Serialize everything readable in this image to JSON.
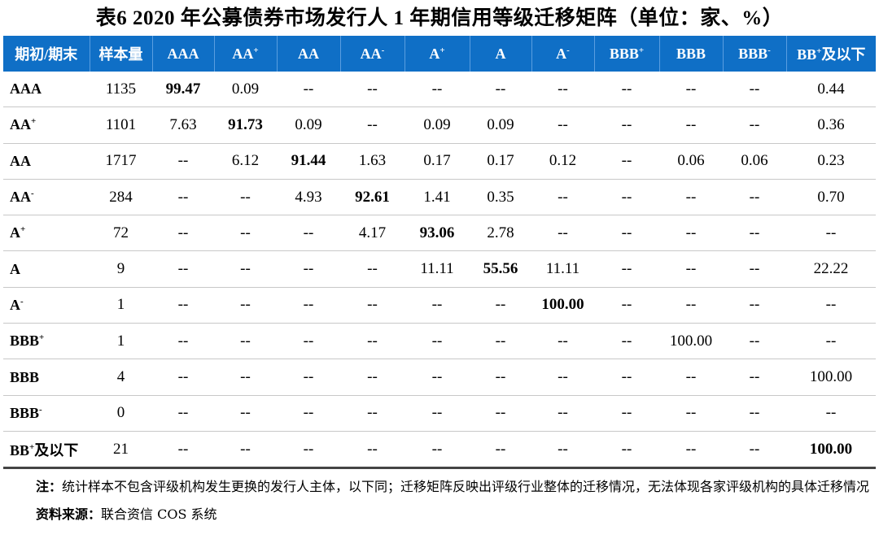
{
  "title": "表6 2020 年公募债券市场发行人 1 年期信用等级迁移矩阵（单位：家、%）",
  "header": [
    {
      "t": "期初/期末",
      "s": ""
    },
    {
      "t": "样本量",
      "s": ""
    },
    {
      "t": "AAA",
      "s": ""
    },
    {
      "t": "AA",
      "s": "+"
    },
    {
      "t": "AA",
      "s": ""
    },
    {
      "t": "AA",
      "s": "-"
    },
    {
      "t": "A",
      "s": "+"
    },
    {
      "t": "A",
      "s": ""
    },
    {
      "t": "A",
      "s": "-"
    },
    {
      "t": "BBB",
      "s": "+"
    },
    {
      "t": "BBB",
      "s": ""
    },
    {
      "t": "BBB",
      "s": "-"
    },
    {
      "t": "BB",
      "s": "+",
      "tail": "及以下"
    }
  ],
  "rows": [
    {
      "rating": "AAA",
      "sup": "",
      "n": "1135",
      "v": [
        "99.47",
        "0.09",
        "--",
        "--",
        "--",
        "--",
        "--",
        "--",
        "--",
        "--",
        "0.44"
      ],
      "bold": 0
    },
    {
      "rating": "AA",
      "sup": "+",
      "n": "1101",
      "v": [
        "7.63",
        "91.73",
        "0.09",
        "--",
        "0.09",
        "0.09",
        "--",
        "--",
        "--",
        "--",
        "0.36"
      ],
      "bold": 1
    },
    {
      "rating": "AA",
      "sup": "",
      "n": "1717",
      "v": [
        "--",
        "6.12",
        "91.44",
        "1.63",
        "0.17",
        "0.17",
        "0.12",
        "--",
        "0.06",
        "0.06",
        "0.23"
      ],
      "bold": 2
    },
    {
      "rating": "AA",
      "sup": "-",
      "n": "284",
      "v": [
        "--",
        "--",
        "4.93",
        "92.61",
        "1.41",
        "0.35",
        "--",
        "--",
        "--",
        "--",
        "0.70"
      ],
      "bold": 3
    },
    {
      "rating": "A",
      "sup": "+",
      "n": "72",
      "v": [
        "--",
        "--",
        "--",
        "4.17",
        "93.06",
        "2.78",
        "--",
        "--",
        "--",
        "--",
        "--"
      ],
      "bold": 4
    },
    {
      "rating": "A",
      "sup": "",
      "n": "9",
      "v": [
        "--",
        "--",
        "--",
        "--",
        "11.11",
        "55.56",
        "11.11",
        "--",
        "--",
        "--",
        "22.22"
      ],
      "bold": 5
    },
    {
      "rating": "A",
      "sup": "-",
      "n": "1",
      "v": [
        "--",
        "--",
        "--",
        "--",
        "--",
        "--",
        "100.00",
        "--",
        "--",
        "--",
        "--"
      ],
      "bold": 6
    },
    {
      "rating": "BBB",
      "sup": "+",
      "n": "1",
      "v": [
        "--",
        "--",
        "--",
        "--",
        "--",
        "--",
        "--",
        "--",
        "100.00",
        "--",
        "--"
      ],
      "bold": -1
    },
    {
      "rating": "BBB",
      "sup": "",
      "n": "4",
      "v": [
        "--",
        "--",
        "--",
        "--",
        "--",
        "--",
        "--",
        "--",
        "--",
        "--",
        "100.00"
      ],
      "bold": -1
    },
    {
      "rating": "BBB",
      "sup": "-",
      "n": "0",
      "v": [
        "--",
        "--",
        "--",
        "--",
        "--",
        "--",
        "--",
        "--",
        "--",
        "--",
        "--"
      ],
      "bold": -1
    },
    {
      "rating": "BB",
      "sup": "+",
      "tail": "及以下",
      "n": "21",
      "v": [
        "--",
        "--",
        "--",
        "--",
        "--",
        "--",
        "--",
        "--",
        "--",
        "--",
        "100.00"
      ],
      "bold": 10
    }
  ],
  "note_label": "注：",
  "note_text": "统计样本不包含评级机构发生更换的发行人主体，以下同；迁移矩阵反映出评级行业整体的迁移情况，无法体现各家评级机构的具体迁移情况",
  "source_label": "资料来源：",
  "source_text": "联合资信 COS 系统"
}
